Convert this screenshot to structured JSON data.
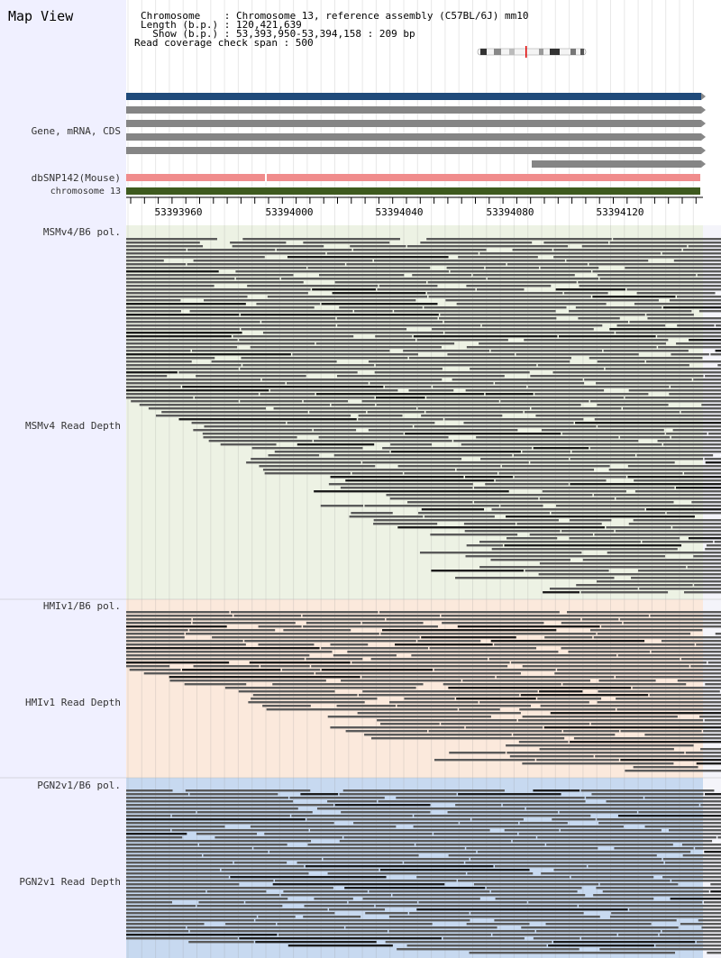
{
  "title": "Map View",
  "info": {
    "lines": [
      "Chromosome    : Chromosome 13, reference assembly (C57BL/6J) mm10",
      "Length (b.p.) : 120,421,639",
      "  Show (b.p.) : 53,393,950-53,394,158 : 209 bp",
      "Read coverage check span : 500"
    ]
  },
  "track_labels": {
    "gene": "Gene, mRNA, CDS",
    "snp": "dbSNP142(Mouse)",
    "chromosome": "chromosome 13",
    "msm_pol": "MSMv4/B6 pol.",
    "msm_depth": "MSMv4 Read Depth",
    "hmi_pol": "HMIv1/B6 pol.",
    "hmi_depth": "HMIv1 Read Depth",
    "pgn_pol": "PGN2v1/B6 pol.",
    "pgn_depth": "PGN2v1 Read Depth"
  },
  "ruler": {
    "ticks": [
      "53393960",
      "53394000",
      "53394040",
      "53394080",
      "53394120"
    ]
  },
  "colors": {
    "gene_blue": "#1f4a7a",
    "gene_gray": "#858585",
    "snp_pink": "#f08c8c",
    "chromosome_green": "#3e5a1e",
    "msm_bg": "#edf2e4",
    "hmi_bg": "#fbe9dc",
    "pgn_bg": "#c7d9f0",
    "read_gray": "#5a5a5a",
    "read_dark": "#1c1c1c"
  }
}
